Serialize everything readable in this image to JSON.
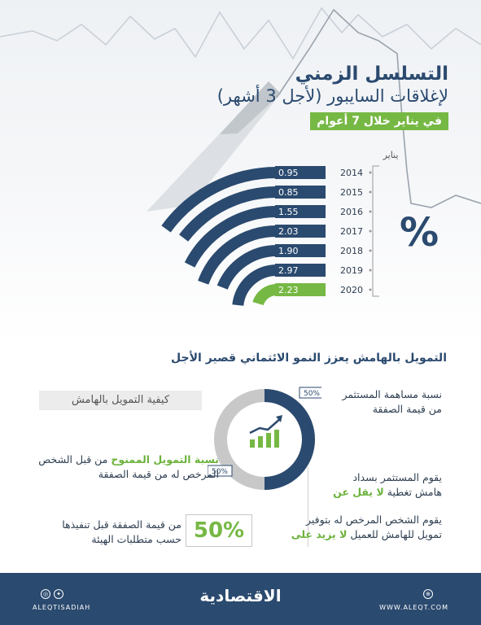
{
  "title": {
    "line1": "التسلسل الزمني",
    "line2": "لإغلاقات السايبور (لأجل 3 أشهر)",
    "line3": "في يناير خلال 7 أعوام"
  },
  "chart_data": {
    "type": "bar",
    "xlabel": "يناير",
    "unit_label": "%",
    "categories": [
      "2014",
      "2015",
      "2016",
      "2017",
      "2018",
      "2019",
      "2020"
    ],
    "values": [
      0.95,
      0.85,
      1.55,
      2.03,
      1.9,
      2.97,
      2.23
    ],
    "value_labels": [
      "0.95",
      "0.85",
      "1.55",
      "2.03",
      "1.90",
      "2.97",
      "2.23"
    ],
    "colors": [
      "#2b4a6f",
      "#2b4a6f",
      "#2b4a6f",
      "#2b4a6f",
      "#2b4a6f",
      "#2b4a6f",
      "#76b844"
    ]
  },
  "section_title": "التمويل بالهامش يعزز النمو الائتماني قصير الأجل",
  "margin_info": {
    "header": "كيفية التمويل بالهامش",
    "donut_top_pct": "50%",
    "donut_bottom_pct": "50%",
    "investor_share": "نسبة مساهمة المستثمر\nمن قيمة الصفقة",
    "financing_title": "نسبة التمويل الممنوح",
    "financing_rest": " من قبل الشخص\nالمرخص له من قيمة الصفقة",
    "investor_pays_1": "يقوم المستثمر بسداد",
    "investor_pays_2": "هامش تغطية ",
    "investor_pays_green": "لا يقل عن",
    "licensed_1": "يقوم الشخص المرخص له بتوفير",
    "licensed_2": "تمويل للهامش للعميل ",
    "licensed_green": "لا يزيد على",
    "pct_50": "50%",
    "deal_value": "من قيمة الصفقة قبل تنفيذها\nحسب متطلبات الهيئة"
  },
  "footer": {
    "brand": "الاقتصادية",
    "handle": "ALEQTISADIAH",
    "site": "WWW.ALEQT.COM",
    "icons": [
      "instagram-icon",
      "twitter-icon",
      "web-icon"
    ]
  }
}
